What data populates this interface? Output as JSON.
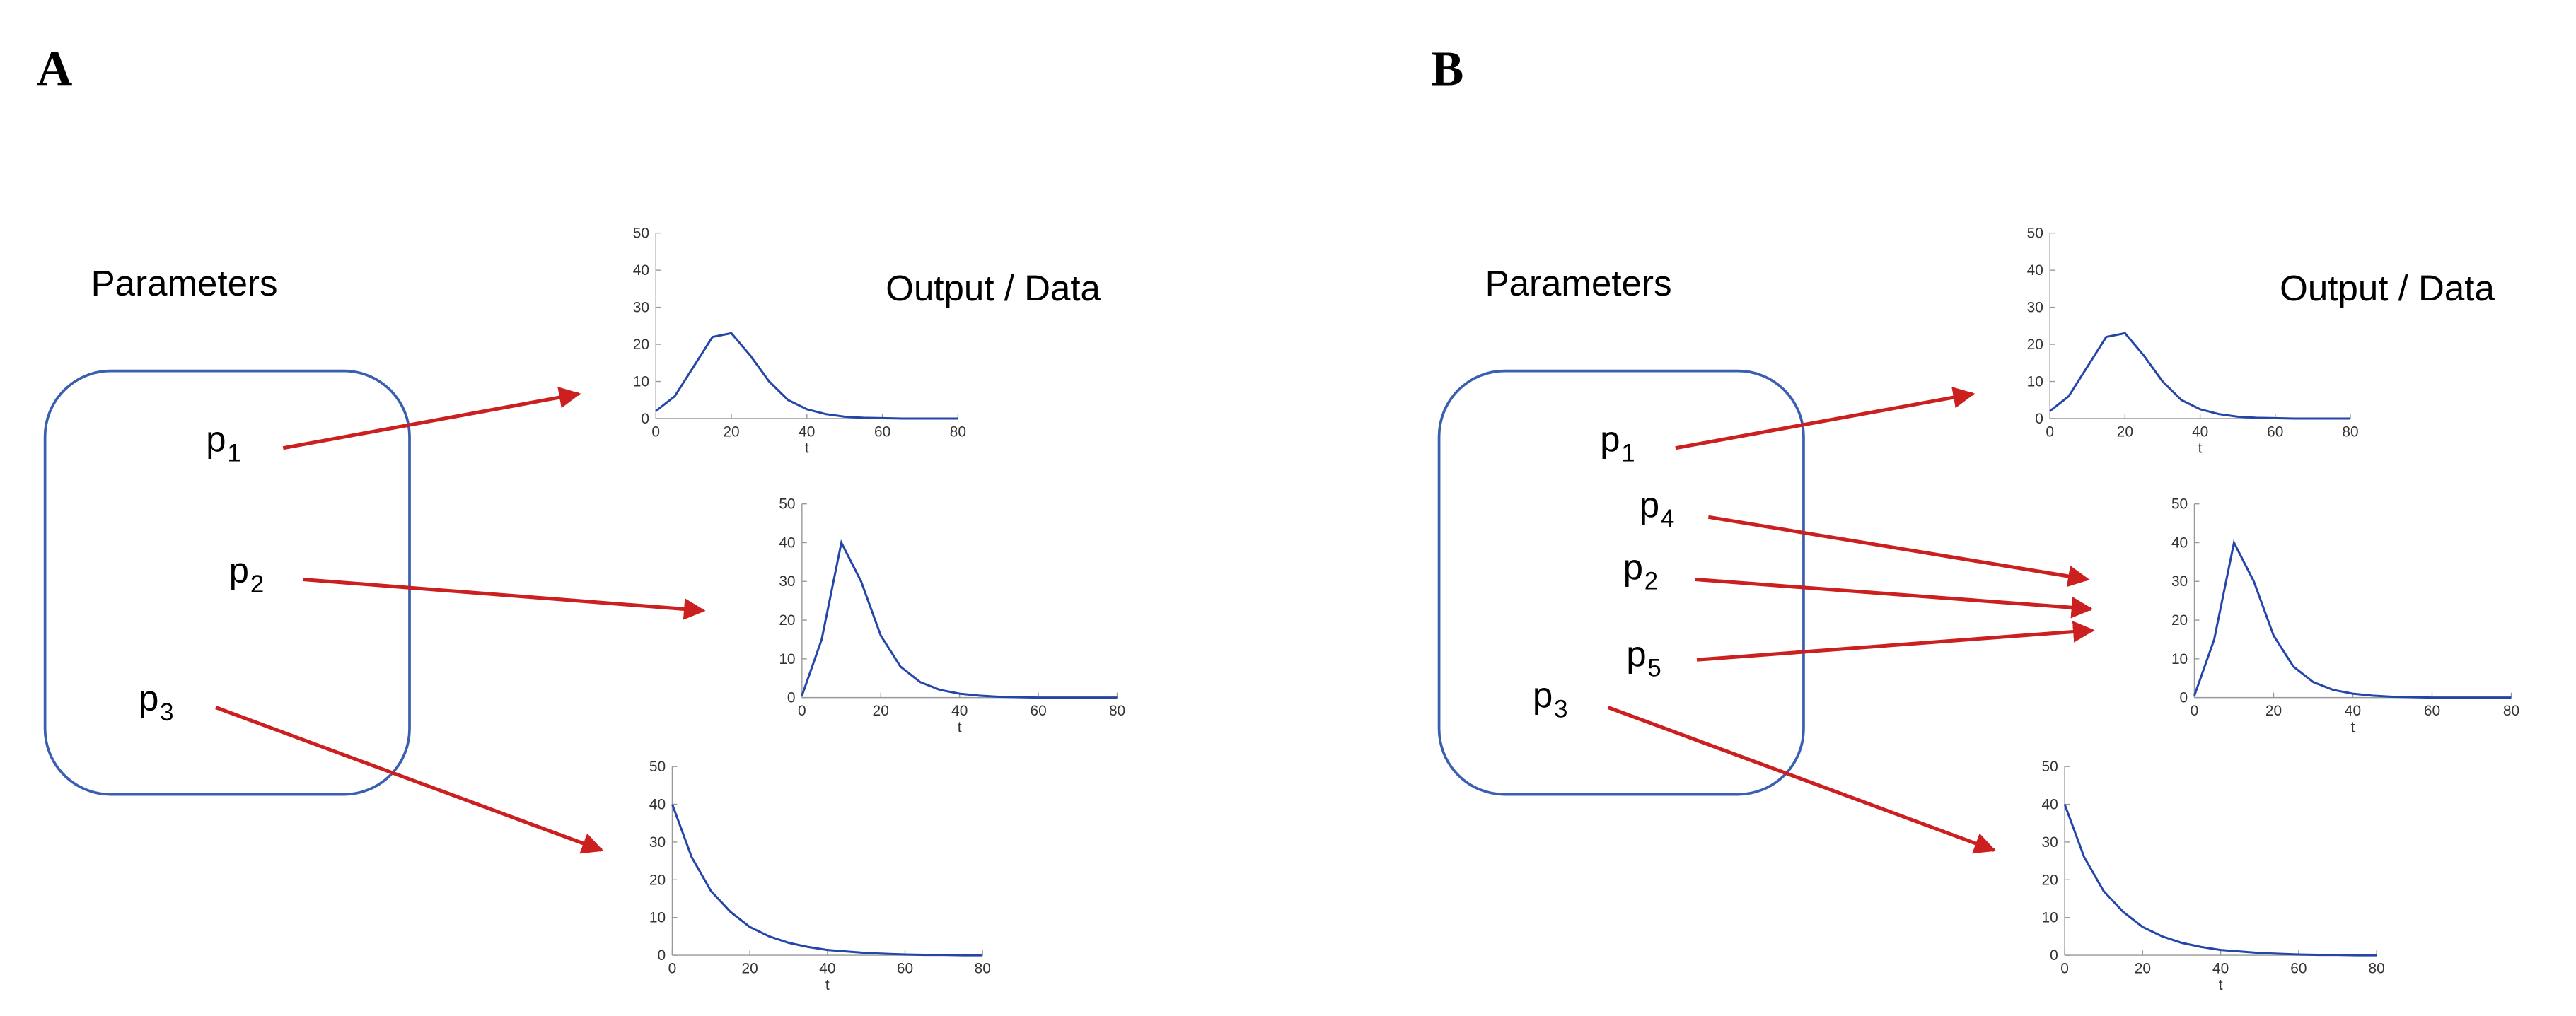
{
  "panels": [
    {
      "label": "A",
      "parameters_title": "Parameters",
      "output_title": "Output / Data",
      "params": [
        {
          "base": "p",
          "sub": "1"
        },
        {
          "base": "p",
          "sub": "2"
        },
        {
          "base": "p",
          "sub": "3"
        }
      ],
      "plots": [
        {
          "xlabel": "t",
          "xlim": [
            0,
            80
          ],
          "xticks": [
            0,
            20,
            40,
            60,
            80
          ],
          "ylim": [
            0,
            50
          ],
          "yticks": [
            0,
            10,
            20,
            30,
            40,
            50
          ],
          "x": [
            0,
            5,
            10,
            15,
            20,
            25,
            30,
            35,
            40,
            45,
            50,
            55,
            60,
            65,
            70,
            75,
            80
          ],
          "values": [
            2,
            6,
            14,
            22,
            23,
            17,
            10,
            5,
            2.5,
            1.2,
            0.5,
            0.2,
            0.1,
            0,
            0,
            0,
            0
          ]
        },
        {
          "xlabel": "t",
          "xlim": [
            0,
            80
          ],
          "xticks": [
            0,
            20,
            40,
            60,
            80
          ],
          "ylim": [
            0,
            50
          ],
          "yticks": [
            0,
            10,
            20,
            30,
            40,
            50
          ],
          "x": [
            0,
            5,
            10,
            15,
            20,
            25,
            30,
            35,
            40,
            45,
            50,
            55,
            60,
            65,
            70,
            75,
            80
          ],
          "values": [
            0.5,
            15,
            40,
            30,
            16,
            8,
            4,
            2,
            1,
            0.5,
            0.2,
            0.1,
            0,
            0,
            0,
            0,
            0
          ]
        },
        {
          "xlabel": "t",
          "xlim": [
            0,
            80
          ],
          "xticks": [
            0,
            20,
            40,
            60,
            80
          ],
          "ylim": [
            0,
            50
          ],
          "yticks": [
            0,
            10,
            20,
            30,
            40,
            50
          ],
          "x": [
            0,
            5,
            10,
            15,
            20,
            25,
            30,
            35,
            40,
            45,
            50,
            55,
            60,
            65,
            70,
            75,
            80
          ],
          "values": [
            40,
            26,
            17,
            11.5,
            7.5,
            5,
            3.3,
            2.2,
            1.4,
            1,
            0.6,
            0.4,
            0.2,
            0.1,
            0.1,
            0,
            0
          ]
        }
      ]
    },
    {
      "label": "B",
      "parameters_title": "Parameters",
      "output_title": "Output / Data",
      "params": [
        {
          "base": "p",
          "sub": "1"
        },
        {
          "base": "p",
          "sub": "4"
        },
        {
          "base": "p",
          "sub": "2"
        },
        {
          "base": "p",
          "sub": "5"
        },
        {
          "base": "p",
          "sub": "3"
        }
      ],
      "plots": [
        {
          "xlabel": "t",
          "xlim": [
            0,
            80
          ],
          "xticks": [
            0,
            20,
            40,
            60,
            80
          ],
          "ylim": [
            0,
            50
          ],
          "yticks": [
            0,
            10,
            20,
            30,
            40,
            50
          ],
          "x": [
            0,
            5,
            10,
            15,
            20,
            25,
            30,
            35,
            40,
            45,
            50,
            55,
            60,
            65,
            70,
            75,
            80
          ],
          "values": [
            2,
            6,
            14,
            22,
            23,
            17,
            10,
            5,
            2.5,
            1.2,
            0.5,
            0.2,
            0.1,
            0,
            0,
            0,
            0
          ]
        },
        {
          "xlabel": "t",
          "xlim": [
            0,
            80
          ],
          "xticks": [
            0,
            20,
            40,
            60,
            80
          ],
          "ylim": [
            0,
            50
          ],
          "yticks": [
            0,
            10,
            20,
            30,
            40,
            50
          ],
          "x": [
            0,
            5,
            10,
            15,
            20,
            25,
            30,
            35,
            40,
            45,
            50,
            55,
            60,
            65,
            70,
            75,
            80
          ],
          "values": [
            0.5,
            15,
            40,
            30,
            16,
            8,
            4,
            2,
            1,
            0.5,
            0.2,
            0.1,
            0,
            0,
            0,
            0,
            0
          ]
        },
        {
          "xlabel": "t",
          "xlim": [
            0,
            80
          ],
          "xticks": [
            0,
            20,
            40,
            60,
            80
          ],
          "ylim": [
            0,
            50
          ],
          "yticks": [
            0,
            10,
            20,
            30,
            40,
            50
          ],
          "x": [
            0,
            5,
            10,
            15,
            20,
            25,
            30,
            35,
            40,
            45,
            50,
            55,
            60,
            65,
            70,
            75,
            80
          ],
          "values": [
            40,
            26,
            17,
            11.5,
            7.5,
            5,
            3.3,
            2.2,
            1.4,
            1,
            0.6,
            0.4,
            0.2,
            0.1,
            0.1,
            0,
            0
          ]
        }
      ]
    }
  ]
}
